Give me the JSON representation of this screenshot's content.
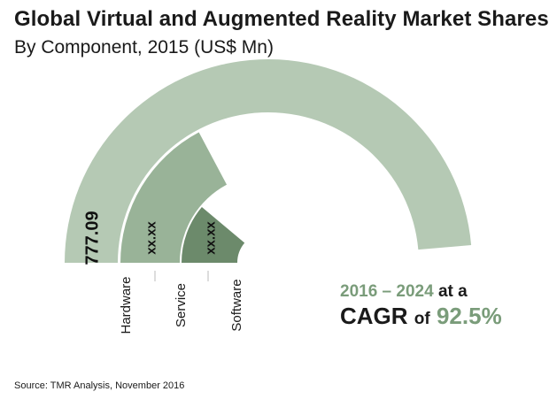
{
  "title": "Global Virtual and Augmented Reality Market Shares",
  "subtitle": "By Component, 2015 (US$ Mn)",
  "chart_data": {
    "type": "radial_bar",
    "categories": [
      "Hardware",
      "Service",
      "Software"
    ],
    "value_labels": [
      "777.09",
      "xx.xx",
      "xx.xx"
    ],
    "angular_extent_degrees": [
      175,
      62,
      40
    ],
    "colors": [
      "#b5c9b4",
      "#99b398",
      "#6c8a6b"
    ]
  },
  "cagr": {
    "years": "2016 – 2024",
    "at_a": "at a",
    "cagr_label": "CAGR",
    "of": "of",
    "value": "92.5%"
  },
  "source": "Source: TMR Analysis, November 2016"
}
